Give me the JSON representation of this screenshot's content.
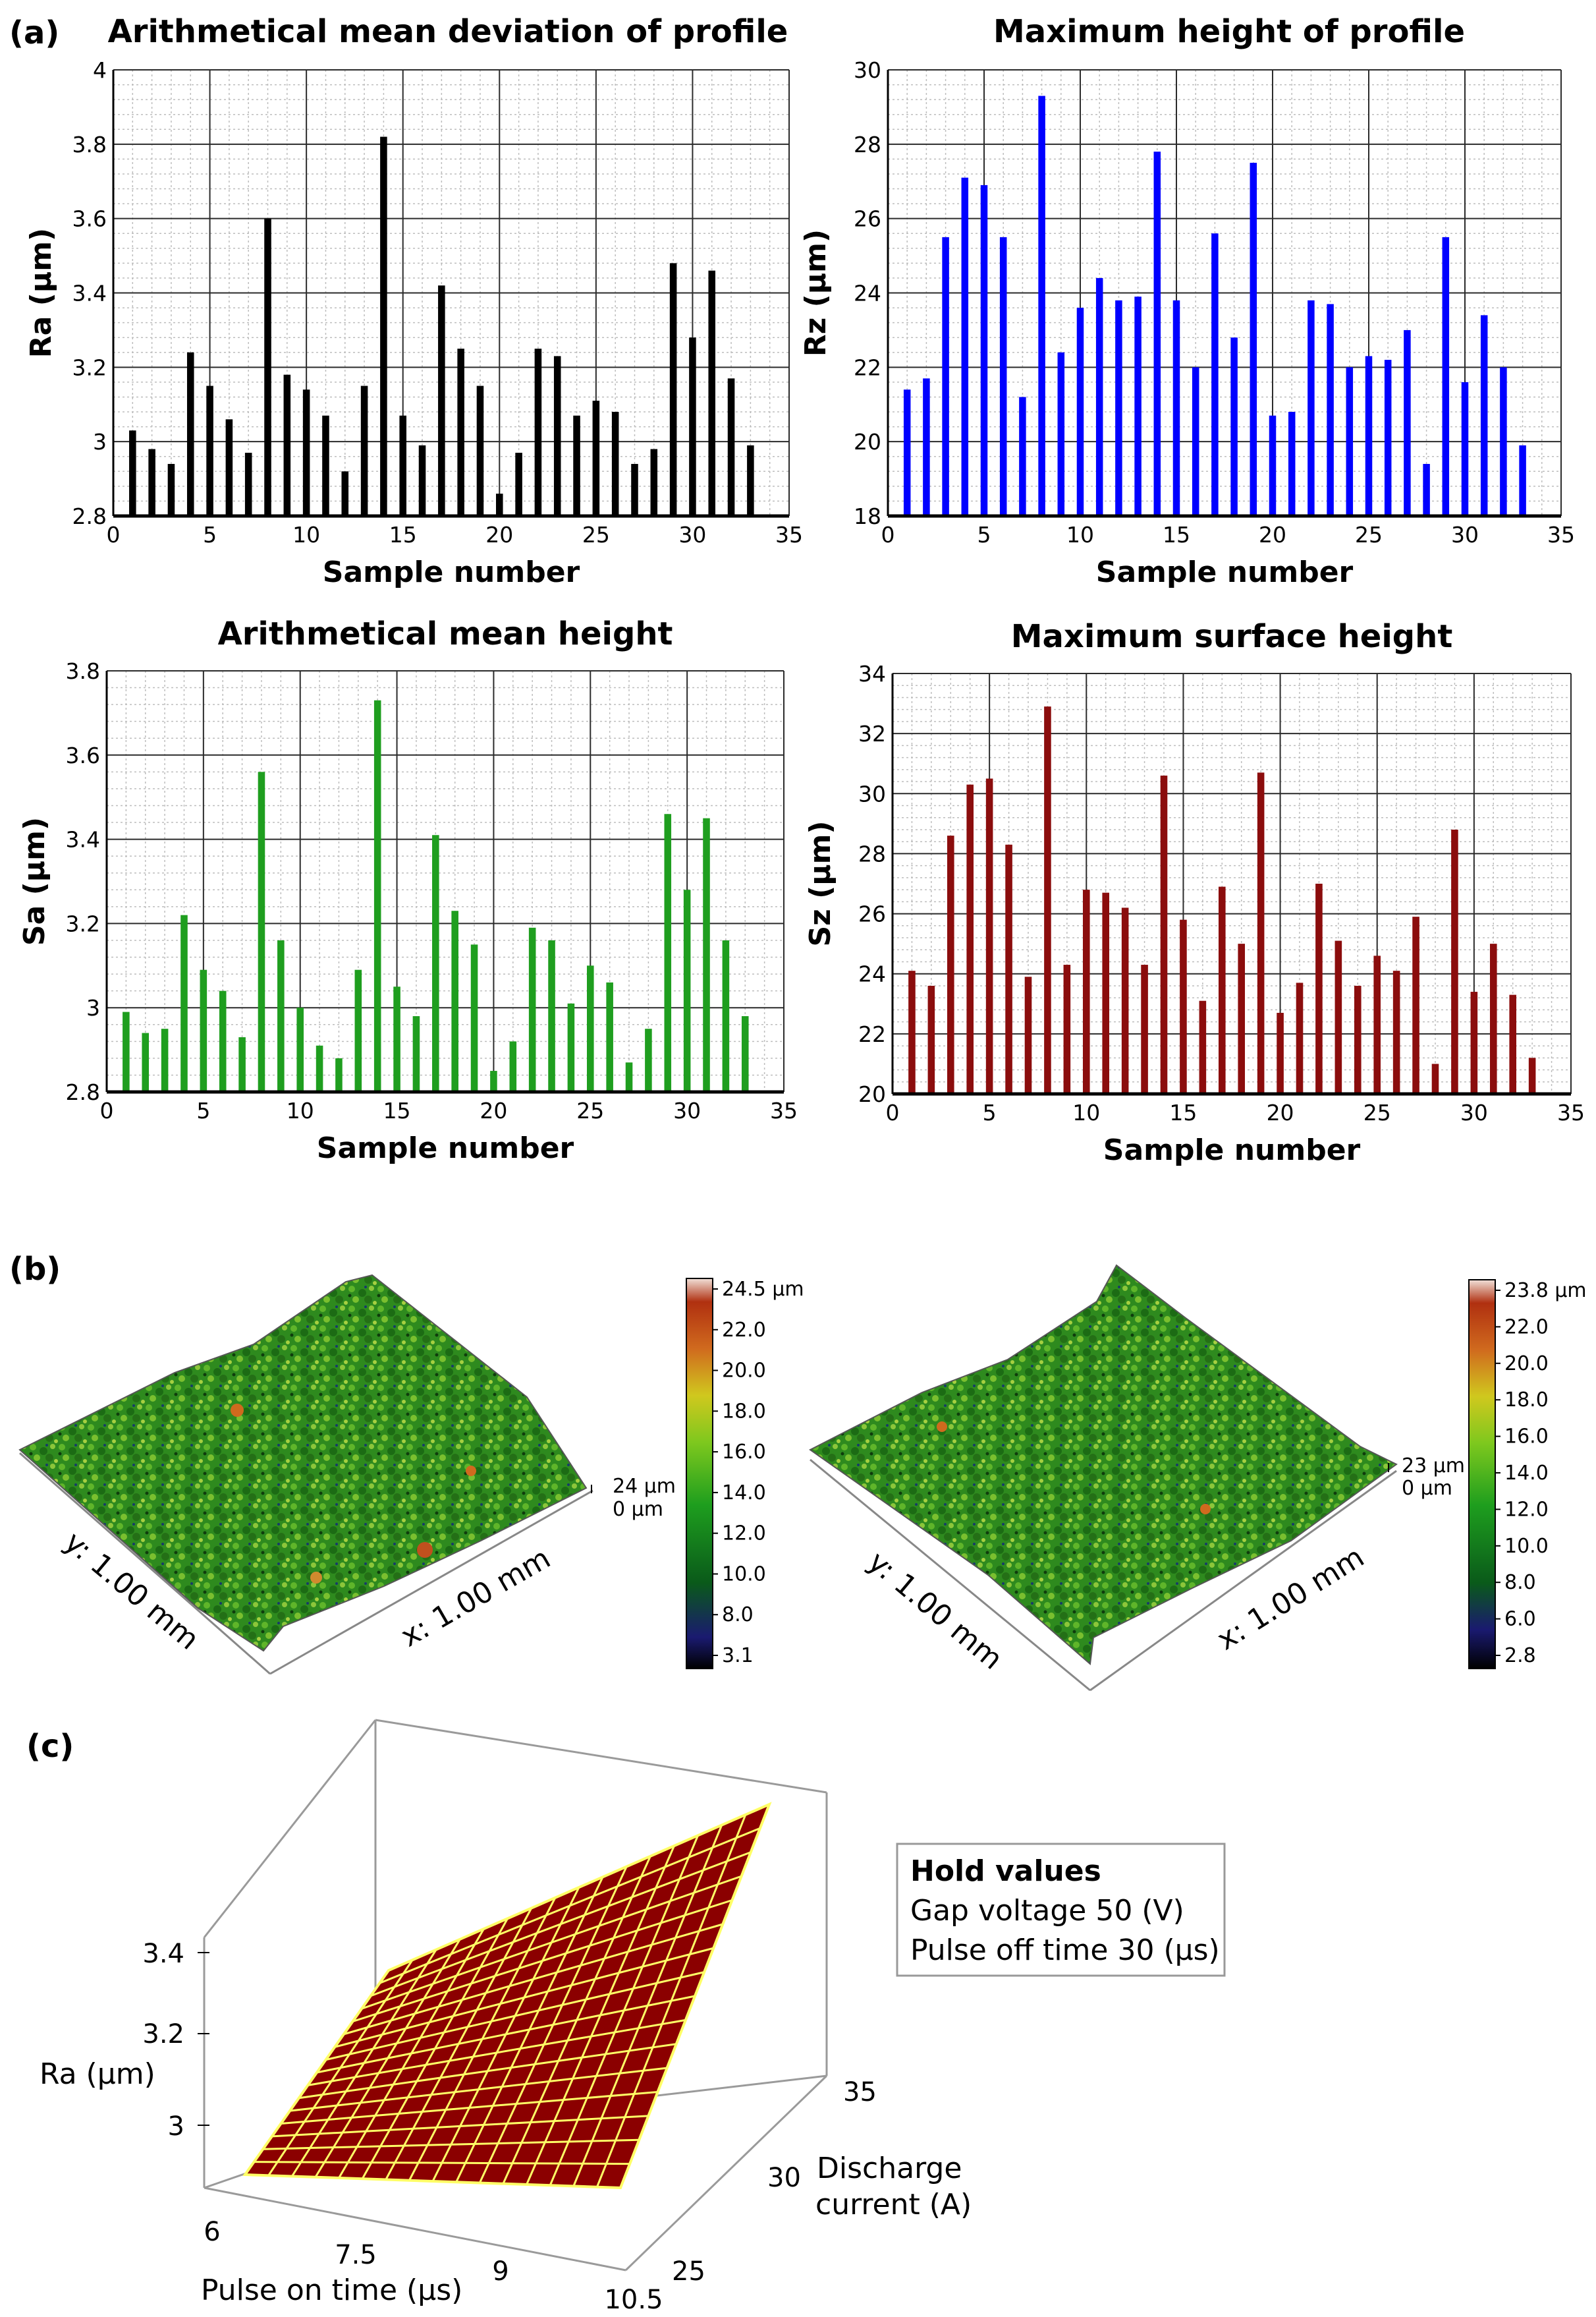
{
  "panels": {
    "a": "(a)",
    "b": "(b)",
    "c": "(c)"
  },
  "colors": {
    "ra": "#000000",
    "rz": "#0000ff",
    "sa": "#1f9e1f",
    "sz": "#8b0d0d",
    "surface": "#8b0000",
    "surface_grid": "#ffff66"
  },
  "chart_data": [
    {
      "type": "bar",
      "title": "Arithmetical mean deviation of profile",
      "xlabel": "Sample number",
      "ylabel": "Ra (μm)",
      "xlim": [
        0,
        35
      ],
      "ylim": [
        2.8,
        4
      ],
      "xticks": [
        0,
        5,
        10,
        15,
        20,
        25,
        30,
        35
      ],
      "yticks": [
        2.8,
        3,
        3.2,
        3.4,
        3.6,
        3.8,
        4
      ],
      "ytick_labels": [
        "2.8",
        "3",
        "3.2",
        "3.4",
        "3.6",
        "3.8",
        "4"
      ],
      "x": [
        1,
        2,
        3,
        4,
        5,
        6,
        7,
        8,
        9,
        10,
        11,
        12,
        13,
        14,
        15,
        16,
        17,
        18,
        19,
        20,
        21,
        22,
        23,
        24,
        25,
        26,
        27,
        28,
        29,
        30,
        31,
        32,
        33
      ],
      "values": [
        3.03,
        2.98,
        2.94,
        3.24,
        3.15,
        3.06,
        2.97,
        3.6,
        3.18,
        3.14,
        3.07,
        2.92,
        3.15,
        3.82,
        3.07,
        2.99,
        3.42,
        3.25,
        3.15,
        2.86,
        2.97,
        3.25,
        3.23,
        3.07,
        3.11,
        3.08,
        2.94,
        2.98,
        3.48,
        3.28,
        3.46,
        3.17,
        2.99
      ],
      "color": "#000000"
    },
    {
      "type": "bar",
      "title": "Maximum height of profile",
      "xlabel": "Sample number",
      "ylabel": "Rz (μm)",
      "xlim": [
        0,
        35
      ],
      "ylim": [
        18,
        30
      ],
      "xticks": [
        0,
        5,
        10,
        15,
        20,
        25,
        30,
        35
      ],
      "yticks": [
        18,
        20,
        22,
        24,
        26,
        28,
        30
      ],
      "ytick_labels": [
        "18",
        "20",
        "22",
        "24",
        "26",
        "28",
        "30"
      ],
      "x": [
        1,
        2,
        3,
        4,
        5,
        6,
        7,
        8,
        9,
        10,
        11,
        12,
        13,
        14,
        15,
        16,
        17,
        18,
        19,
        20,
        21,
        22,
        23,
        24,
        25,
        26,
        27,
        28,
        29,
        30,
        31,
        32,
        33
      ],
      "values": [
        21.4,
        21.7,
        25.5,
        27.1,
        26.9,
        25.5,
        21.2,
        29.3,
        22.4,
        23.6,
        24.4,
        23.8,
        23.9,
        27.8,
        23.8,
        22.0,
        25.6,
        22.8,
        27.5,
        20.7,
        20.8,
        23.8,
        23.7,
        22.0,
        22.3,
        22.2,
        23.0,
        19.4,
        25.5,
        21.6,
        23.4,
        22.0,
        19.9
      ],
      "color": "#0000ff"
    },
    {
      "type": "bar",
      "title": "Arithmetical mean height",
      "xlabel": "Sample number",
      "ylabel": "Sa (μm)",
      "xlim": [
        0,
        35
      ],
      "ylim": [
        2.8,
        3.8
      ],
      "xticks": [
        0,
        5,
        10,
        15,
        20,
        25,
        30,
        35
      ],
      "yticks": [
        2.8,
        3,
        3.2,
        3.4,
        3.6,
        3.8
      ],
      "ytick_labels": [
        "2.8",
        "3",
        "3.2",
        "3.4",
        "3.6",
        "3.8"
      ],
      "x": [
        1,
        2,
        3,
        4,
        5,
        6,
        7,
        8,
        9,
        10,
        11,
        12,
        13,
        14,
        15,
        16,
        17,
        18,
        19,
        20,
        21,
        22,
        23,
        24,
        25,
        26,
        27,
        28,
        29,
        30,
        31,
        32,
        33
      ],
      "values": [
        2.99,
        2.94,
        2.95,
        3.22,
        3.09,
        3.04,
        2.93,
        3.56,
        3.16,
        3.0,
        2.91,
        2.88,
        3.09,
        3.73,
        3.05,
        2.98,
        3.41,
        3.23,
        3.15,
        2.85,
        2.92,
        3.19,
        3.16,
        3.01,
        3.1,
        3.06,
        2.87,
        2.95,
        3.46,
        3.28,
        3.45,
        3.16,
        2.98
      ],
      "color": "#1f9e1f"
    },
    {
      "type": "bar",
      "title": "Maximum surface height",
      "xlabel": "Sample number",
      "ylabel": "Sz (μm)",
      "xlim": [
        0,
        35
      ],
      "ylim": [
        20,
        34
      ],
      "xticks": [
        0,
        5,
        10,
        15,
        20,
        25,
        30,
        35
      ],
      "yticks": [
        20,
        22,
        24,
        26,
        28,
        30,
        32,
        34
      ],
      "ytick_labels": [
        "20",
        "22",
        "24",
        "26",
        "28",
        "30",
        "32",
        "34"
      ],
      "x": [
        1,
        2,
        3,
        4,
        5,
        6,
        7,
        8,
        9,
        10,
        11,
        12,
        13,
        14,
        15,
        16,
        17,
        18,
        19,
        20,
        21,
        22,
        23,
        24,
        25,
        26,
        27,
        28,
        29,
        30,
        31,
        32,
        33
      ],
      "values": [
        24.1,
        23.6,
        28.6,
        30.3,
        30.5,
        28.3,
        23.9,
        32.9,
        24.3,
        26.8,
        26.7,
        26.2,
        24.3,
        30.6,
        25.8,
        23.1,
        26.9,
        25.0,
        30.7,
        22.7,
        23.7,
        27.0,
        25.1,
        23.6,
        24.6,
        24.1,
        25.9,
        21.0,
        28.8,
        23.4,
        25.0,
        23.3,
        21.2
      ],
      "color": "#8b0d0d"
    },
    {
      "type": "surface3d",
      "xlabel": "Pulse on time (μs)",
      "ylabel": "Discharge current (A)",
      "zlabel": "Ra (μm)",
      "xticks": [
        "6",
        "7.5",
        "9",
        "10.5"
      ],
      "yticks": [
        "25",
        "30",
        "35"
      ],
      "zticks": [
        "3",
        "3.2",
        "3.4"
      ],
      "xlim": [
        6,
        10.5
      ],
      "ylim": [
        25,
        35
      ],
      "corner_values": {
        "x6_y25": 2.9,
        "x10_5_y25": 3.05,
        "x6_y35": 3.15,
        "x10_5_y35": 3.55
      }
    }
  ],
  "maps3d": [
    {
      "colorbar_ticks": [
        "24.5 μm",
        "22.0",
        "20.0",
        "18.0",
        "16.0",
        "14.0",
        "12.0",
        "10.0",
        "8.0",
        "3.1"
      ],
      "zaxis_top": "24 μm",
      "zaxis_bottom": "0 μm",
      "xlabel": "x: 1.00 mm",
      "ylabel": "y: 1.00 mm"
    },
    {
      "colorbar_ticks": [
        "23.8 μm",
        "22.0",
        "20.0",
        "18.0",
        "16.0",
        "14.0",
        "12.0",
        "10.0",
        "8.0",
        "6.0",
        "2.8"
      ],
      "zaxis_top": "23 μm",
      "zaxis_bottom": "0 μm",
      "xlabel": "x: 1.00 mm",
      "ylabel": "y: 1.00 mm"
    }
  ],
  "hold_values": {
    "title": "Hold values",
    "line1": "Gap voltage 50 (V)",
    "line2": "Pulse off time 30 (μs)"
  }
}
